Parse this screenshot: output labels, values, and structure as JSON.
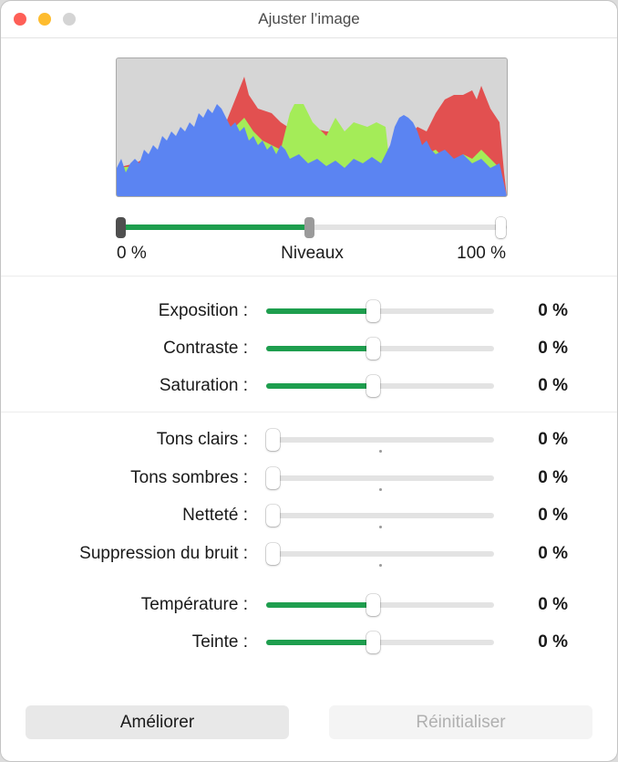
{
  "window": {
    "title": "Ajuster l’image"
  },
  "colors": {
    "close": "#fe5f57",
    "minimize": "#febc2e",
    "zoom": "#d4d4d4",
    "accent": "#1e9e4e"
  },
  "histogram": {
    "visible": true
  },
  "levels": {
    "label": "Niveaux",
    "min_label": "0 %",
    "max_label": "100 %",
    "black_point": 0.0,
    "midpoint": 0.5,
    "white_point": 1.0
  },
  "sliders": [
    {
      "label": "Exposition :",
      "value": "0 %",
      "position": 0.5,
      "filled": true
    },
    {
      "label": "Contraste :",
      "value": "0 %",
      "position": 0.5,
      "filled": true
    },
    {
      "label": "Saturation :",
      "value": "0 %",
      "position": 0.5,
      "filled": true
    },
    {
      "label": "Tons clairs :",
      "value": "0 %",
      "position": 0.0,
      "filled": false
    },
    {
      "label": "Tons sombres :",
      "value": "0 %",
      "position": 0.0,
      "filled": false
    },
    {
      "label": "Netteté :",
      "value": "0 %",
      "position": 0.0,
      "filled": false
    },
    {
      "label": "Suppression du bruit :",
      "value": "0 %",
      "position": 0.0,
      "filled": false
    },
    {
      "label": "Température :",
      "value": "0 %",
      "position": 0.5,
      "filled": true
    },
    {
      "label": "Teinte :",
      "value": "0 %",
      "position": 0.5,
      "filled": true
    }
  ],
  "buttons": {
    "enhance": "Améliorer",
    "reset": "Réinitialiser"
  }
}
